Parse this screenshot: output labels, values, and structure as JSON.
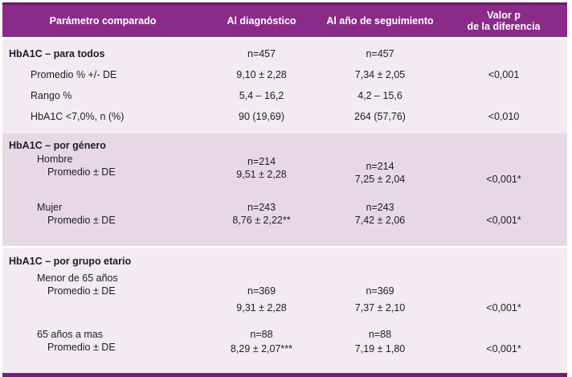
{
  "colors": {
    "header_bg": "#8a2b8a",
    "header_top_border": "#6a1a6a",
    "section_light_bg": "#f3eaf2",
    "section_dark_bg": "#e8d8e6",
    "bottom_bar": "#722072",
    "header_text": "#ffffff",
    "body_text": "#1d1b2e"
  },
  "header": {
    "col_param": "Parámetro comparado",
    "col_diag": "Al diagnóstico",
    "col_followup": "Al año de seguimiento",
    "col_p_line1": "Valor p",
    "col_p_line2": "de la diferencia"
  },
  "s1": {
    "title": "HbA1C – para todos",
    "n_diag": "n=457",
    "n_follow": "n=457",
    "rows": [
      {
        "param": "Promedio % +/- DE",
        "diag": "9,10 ± 2,28",
        "follow": "7,34 ± 2,05",
        "p": "<0,001"
      },
      {
        "param": "Rango %",
        "diag": "5,4 – 16,2",
        "follow": "4,2 – 15,6",
        "p": ""
      },
      {
        "param": "HbA1C <7,0%, n (%)",
        "diag": "90 (19,69)",
        "follow": "264 (57,76)",
        "p": "<0,010"
      }
    ]
  },
  "s2": {
    "title": "HbA1C – por género",
    "blocks": [
      {
        "group": "Hombre",
        "param": "Promedio ± DE",
        "n_diag": "n=214",
        "diag": "9,51 ± 2,28",
        "n_follow": "n=214",
        "follow": "7,25 ± 2,04",
        "p": "<0,001*"
      },
      {
        "group": "Mujer",
        "param": "Promedio ± DE",
        "n_diag": "n=243",
        "diag": "8,76 ± 2,22**",
        "n_follow": "n=243",
        "follow": "7,42 ± 2,06",
        "p": "<0,001*"
      }
    ]
  },
  "s3": {
    "title": "HbA1C – por grupo etario",
    "blocks": [
      {
        "group": "Menor de 65 años",
        "param": "Promedio ± DE",
        "n_diag": "n=369",
        "diag": "9,31 ± 2,28",
        "n_follow": "n=369",
        "follow": "7,37 ± 2,10",
        "p": "<0,001*"
      },
      {
        "group": "65 años a mas",
        "param": "Promedio ± DE",
        "n_diag": "n=88",
        "diag": "8,29 ± 2,07***",
        "n_follow": "n=88",
        "follow": "7,19 ± 1,80",
        "p": "<0,001*"
      }
    ]
  }
}
